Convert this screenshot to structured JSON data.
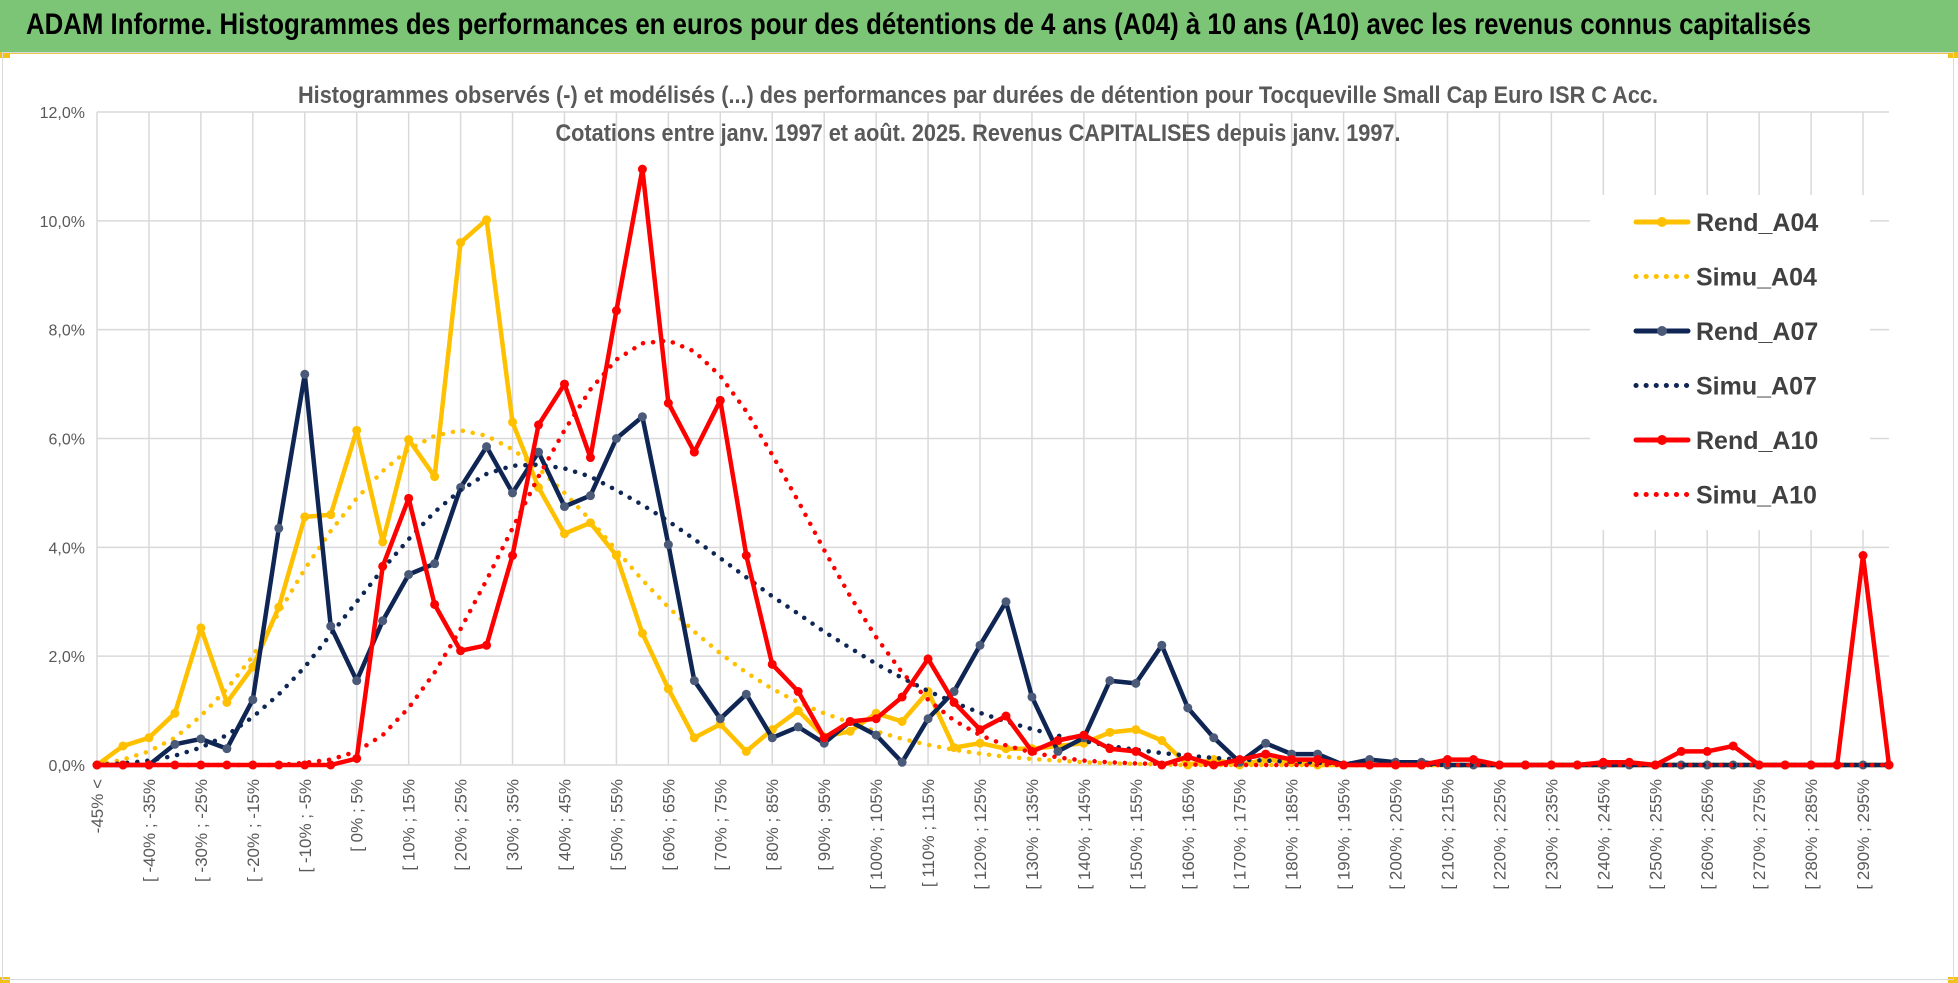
{
  "header": {
    "title": "ADAM Informe. Histogrammes des performances en euros pour des détentions de 4 ans (A04) à 10 ans (A10) avec les revenus connus capitalisés"
  },
  "colors": {
    "banner": "#7cc576",
    "A04": "#ffc000",
    "A07": "#0f2654",
    "A10": "#ff0000",
    "grid": "#d9d9d9"
  },
  "chart_data": {
    "type": "line",
    "title": "Histogrammes observés (-) et modélisés (...) des performances par durées de détention pour Tocqueville Small Cap Euro ISR C Acc.",
    "subtitle": "Cotations entre janv. 1997 et août. 2025. Revenus CAPITALISES depuis janv. 1997.",
    "xlabel": "",
    "ylabel": "",
    "ylim": [
      0,
      12
    ],
    "y_unit": "%",
    "y_ticks": [
      "0,0%",
      "2,0%",
      "4,0%",
      "6,0%",
      "8,0%",
      "10,0%",
      "12,0%"
    ],
    "grid": true,
    "legend_position": "right",
    "x": [
      "-45% <",
      "",
      "[ -40% ; -35%",
      "",
      "[ -30% ; -25%",
      "",
      "[ -20% ; -15%",
      "",
      "[ -10% ; -5%",
      "",
      "[ 0% ; 5%",
      "",
      "[ 10% ; 15%",
      "",
      "[ 20% ; 25%",
      "",
      "[ 30% ; 35%",
      "",
      "[ 40% ; 45%",
      "",
      "[ 50% ; 55%",
      "",
      "[ 60% ; 65%",
      "",
      "[ 70% ; 75%",
      "",
      "[ 80% ; 85%",
      "",
      "[ 90% ; 95%",
      "",
      "[ 100% ; 105%",
      "",
      "[ 110% ; 115%",
      "",
      "[ 120% ; 125%",
      "",
      "[ 130% ; 135%",
      "",
      "[ 140% ; 145%",
      "",
      "[ 150% ; 155%",
      "",
      "[ 160% ; 165%",
      "",
      "[ 170% ; 175%",
      "",
      "[ 180% ; 185%",
      "",
      "[ 190% ; 195%",
      "",
      "[ 200% ; 205%",
      "",
      "[ 210% ; 215%",
      "",
      "[ 220% ; 225%",
      "",
      "[ 230% ; 235%",
      "",
      "[ 240% ; 245%",
      "",
      "[ 250% ; 255%",
      "",
      "[ 260% ; 265%",
      "",
      "[ 270% ; 275%",
      "",
      "[ 280% ; 285%",
      "",
      "[ 290% ; 295%",
      ""
    ],
    "series": [
      {
        "name": "Rend_A04",
        "style": "solid",
        "color": "#ffc000",
        "values": [
          0,
          0.35,
          0.5,
          0.95,
          2.52,
          1.15,
          1.8,
          2.9,
          4.56,
          4.6,
          6.15,
          4.1,
          5.98,
          5.3,
          9.6,
          10.02,
          6.3,
          5.1,
          4.25,
          4.45,
          3.85,
          2.42,
          1.4,
          0.5,
          0.75,
          0.25,
          0.65,
          1.0,
          0.52,
          0.62,
          0.95,
          0.8,
          1.35,
          0.32,
          0.4,
          0.3,
          0.3,
          0.35,
          0.4,
          0.6,
          0.65,
          0.45,
          0,
          0.1,
          0,
          0.1,
          0.05,
          0,
          0,
          0,
          0,
          0,
          0,
          0,
          0,
          0,
          0,
          0,
          0,
          0,
          0,
          0,
          0,
          0,
          0,
          0,
          0,
          0,
          0,
          0
        ]
      },
      {
        "name": "Simu_A04",
        "style": "dotted",
        "color": "#ffc000",
        "values": [
          0,
          0.1,
          0.25,
          0.5,
          0.9,
          1.4,
          2.0,
          2.8,
          3.6,
          4.3,
          4.9,
          5.4,
          5.8,
          6.05,
          6.15,
          6.05,
          5.8,
          5.45,
          5.0,
          4.5,
          3.95,
          3.4,
          2.9,
          2.45,
          2.05,
          1.7,
          1.4,
          1.15,
          0.95,
          0.78,
          0.62,
          0.48,
          0.37,
          0.28,
          0.21,
          0.15,
          0.11,
          0.08,
          0.05,
          0.03,
          0.02,
          0.01,
          0,
          0,
          0,
          0,
          0,
          0,
          0,
          0,
          0,
          0,
          0,
          0,
          0,
          0,
          0,
          0,
          0,
          0,
          0,
          0,
          0,
          0,
          0,
          0,
          0,
          0,
          0,
          0
        ]
      },
      {
        "name": "Rend_A07",
        "style": "solid",
        "color": "#0f2654",
        "values": [
          0,
          0,
          0,
          0.38,
          0.48,
          0.3,
          1.2,
          4.35,
          7.18,
          2.55,
          1.55,
          2.65,
          3.5,
          3.7,
          5.1,
          5.85,
          5.0,
          5.75,
          4.75,
          4.95,
          6.0,
          6.4,
          4.05,
          1.55,
          0.85,
          1.3,
          0.5,
          0.7,
          0.4,
          0.8,
          0.55,
          0.05,
          0.85,
          1.35,
          2.2,
          3.0,
          1.25,
          0.25,
          0.5,
          1.55,
          1.5,
          2.2,
          1.05,
          0.5,
          0.05,
          0.4,
          0.2,
          0.2,
          0,
          0.1,
          0.05,
          0.05,
          0,
          0,
          0,
          0,
          0,
          0,
          0,
          0,
          0,
          0,
          0,
          0,
          0,
          0,
          0,
          0,
          0,
          0
        ]
      },
      {
        "name": "Simu_A07",
        "style": "dotted",
        "color": "#0f2654",
        "values": [
          0,
          0.03,
          0.08,
          0.17,
          0.32,
          0.55,
          0.88,
          1.3,
          1.8,
          2.4,
          3.0,
          3.6,
          4.15,
          4.65,
          5.05,
          5.35,
          5.5,
          5.52,
          5.45,
          5.3,
          5.05,
          4.78,
          4.48,
          4.15,
          3.8,
          3.45,
          3.1,
          2.78,
          2.45,
          2.15,
          1.86,
          1.6,
          1.36,
          1.15,
          0.96,
          0.8,
          0.66,
          0.54,
          0.44,
          0.35,
          0.28,
          0.22,
          0.17,
          0.13,
          0.1,
          0.08,
          0.06,
          0.04,
          0.03,
          0.02,
          0.01,
          0.01,
          0,
          0,
          0,
          0,
          0,
          0,
          0,
          0,
          0,
          0,
          0,
          0,
          0,
          0,
          0,
          0,
          0,
          0
        ]
      },
      {
        "name": "Rend_A10",
        "style": "solid",
        "color": "#ff0000",
        "values": [
          0,
          0,
          0,
          0,
          0,
          0,
          0,
          0,
          0,
          0,
          0.12,
          3.65,
          4.9,
          2.95,
          2.1,
          2.2,
          3.85,
          6.25,
          7.0,
          5.65,
          8.35,
          10.95,
          6.65,
          5.75,
          6.7,
          3.85,
          1.85,
          1.35,
          0.5,
          0.8,
          0.85,
          1.25,
          1.95,
          1.15,
          0.65,
          0.9,
          0.25,
          0.45,
          0.55,
          0.3,
          0.25,
          0,
          0.15,
          0,
          0.1,
          0.2,
          0.1,
          0.1,
          0,
          0,
          0,
          0,
          0.1,
          0.1,
          0,
          0,
          0,
          0,
          0.05,
          0.05,
          0,
          0.25,
          0.25,
          0.35,
          0,
          0,
          0,
          0,
          3.85,
          0
        ]
      },
      {
        "name": "Simu_A10",
        "style": "dotted",
        "color": "#ff0000",
        "values": [
          0,
          0,
          0,
          0,
          0,
          0,
          0,
          0,
          0.04,
          0.1,
          0.25,
          0.55,
          1.05,
          1.7,
          2.5,
          3.4,
          4.35,
          5.3,
          6.15,
          6.9,
          7.45,
          7.75,
          7.8,
          7.6,
          7.15,
          6.5,
          5.7,
          4.85,
          3.95,
          3.1,
          2.35,
          1.7,
          1.2,
          0.82,
          0.55,
          0.36,
          0.23,
          0.14,
          0.08,
          0.05,
          0.03,
          0.02,
          0.01,
          0,
          0,
          0,
          0,
          0,
          0,
          0,
          0,
          0,
          0,
          0,
          0,
          0,
          0,
          0,
          0,
          0,
          0,
          0,
          0,
          0,
          0,
          0,
          0,
          0,
          0,
          0
        ]
      }
    ]
  }
}
